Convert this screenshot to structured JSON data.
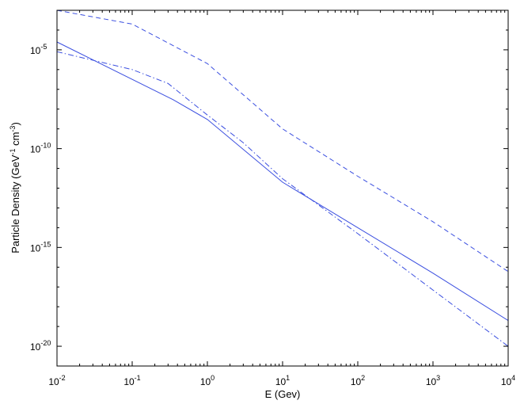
{
  "chart_data": {
    "type": "line",
    "xlabel": "E (Gev)",
    "ylabel_main": "Particle Density (GeV",
    "ylabel_exp1": "-1",
    "ylabel_mid": " cm",
    "ylabel_exp2": "-3",
    "ylabel_close": ")",
    "x_scale": "log",
    "y_scale": "log",
    "xlim": [
      0.01,
      10000
    ],
    "ylim": [
      1e-21,
      0.001
    ],
    "grid": false,
    "legend": "none",
    "x_ticks": [
      {
        "value": 0.01,
        "base": "10",
        "exp": "-2"
      },
      {
        "value": 0.1,
        "base": "10",
        "exp": "-1"
      },
      {
        "value": 1,
        "base": "10",
        "exp": "0"
      },
      {
        "value": 10,
        "base": "10",
        "exp": "1"
      },
      {
        "value": 100,
        "base": "10",
        "exp": "2"
      },
      {
        "value": 1000,
        "base": "10",
        "exp": "3"
      },
      {
        "value": 10000,
        "base": "10",
        "exp": "4"
      }
    ],
    "y_ticks": [
      {
        "value": 1e-05,
        "base": "10",
        "exp": "-5"
      },
      {
        "value": 1e-10,
        "base": "10",
        "exp": "-10"
      },
      {
        "value": 1e-15,
        "base": "10",
        "exp": "-15"
      },
      {
        "value": 1e-20,
        "base": "10",
        "exp": "-20"
      }
    ],
    "series": [
      {
        "style": "solid",
        "color": "#3b4fe0",
        "points": [
          [
            0.01,
            2.5e-05
          ],
          [
            0.35,
            3e-08
          ],
          [
            1,
            3e-09
          ],
          [
            10,
            2e-12
          ],
          [
            100,
            1e-14
          ],
          [
            1000,
            5e-17
          ],
          [
            10000,
            2e-19
          ]
        ]
      },
      {
        "style": "dashed",
        "color": "#3b4fe0",
        "points": [
          [
            0.01,
            0.001
          ],
          [
            0.1,
            0.0002
          ],
          [
            1,
            2e-06
          ],
          [
            10,
            1e-09
          ],
          [
            100,
            4e-12
          ],
          [
            1000,
            2e-14
          ],
          [
            10000,
            6e-17
          ]
        ]
      },
      {
        "style": "dashdot",
        "color": "#3b4fe0",
        "points": [
          [
            0.01,
            8e-06
          ],
          [
            0.1,
            1e-06
          ],
          [
            0.3,
            2e-07
          ],
          [
            1,
            5e-09
          ],
          [
            3,
            2e-10
          ],
          [
            10,
            3e-12
          ],
          [
            100,
            5e-15
          ],
          [
            1000,
            7e-18
          ],
          [
            10000,
            1e-20
          ]
        ]
      }
    ]
  }
}
